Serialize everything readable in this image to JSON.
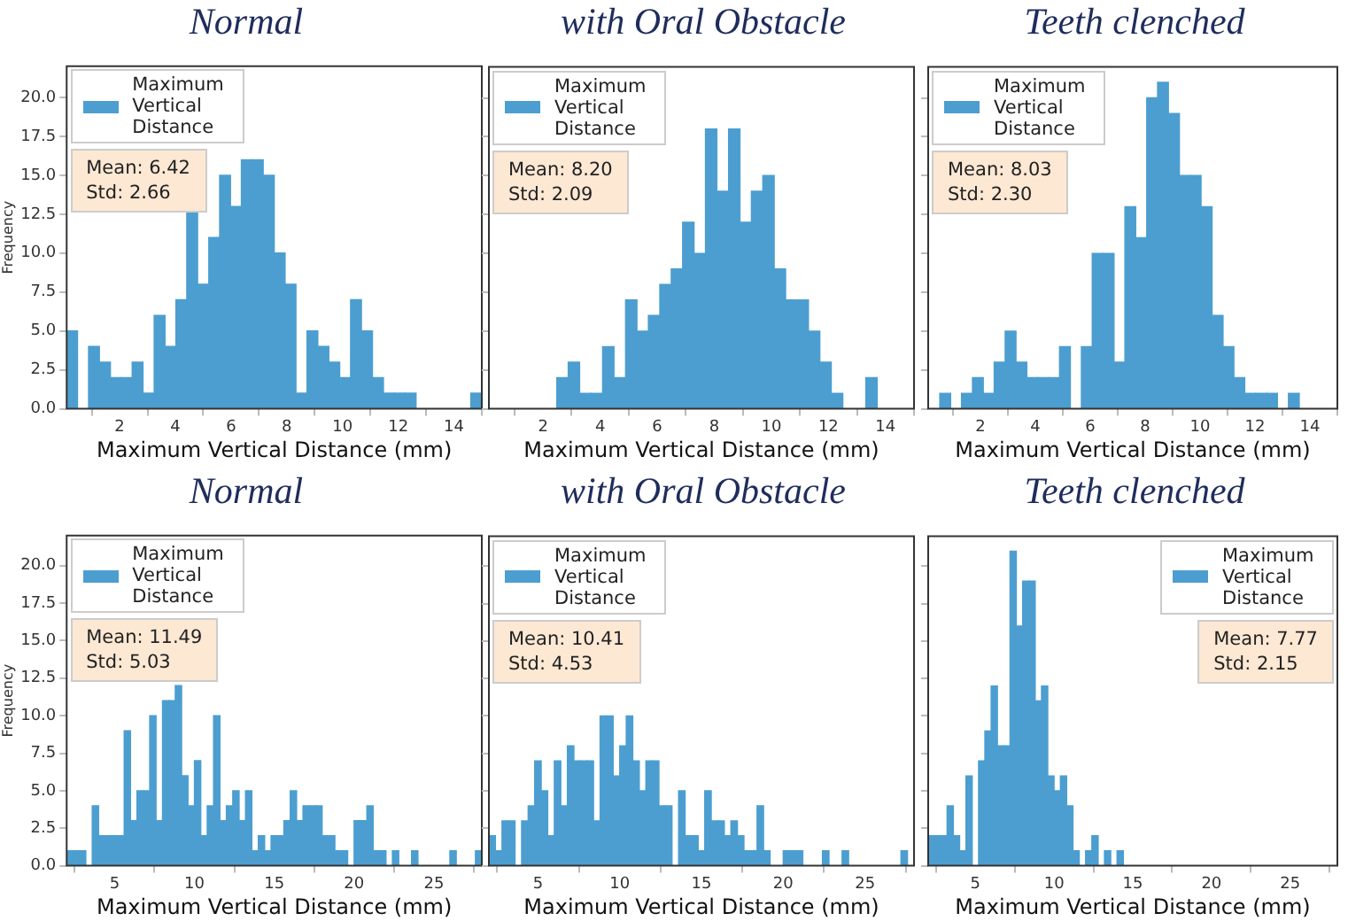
{
  "chart_data": [
    {
      "type": "histogram",
      "title": "Normal",
      "xlabel": "Maximum Vertical Distance (mm)",
      "ylabel": "Frequency",
      "legend": "top left",
      "annotations": [
        "Mean: 6.42",
        "Std: 2.66"
      ],
      "bins": [
        0.1,
        0.49,
        0.88,
        1.28,
        1.67,
        2.06,
        2.45,
        2.84,
        3.24,
        3.63,
        4.02,
        4.41,
        4.8,
        5.2,
        5.59,
        5.98,
        6.37,
        6.76,
        7.16,
        7.55,
        7.94,
        8.33,
        8.72,
        9.12,
        9.51,
        9.9,
        10.29,
        10.68,
        11.08,
        11.47,
        11.86,
        12.25,
        12.64,
        13.04,
        13.43,
        13.82,
        14.21,
        14.6,
        15.0
      ],
      "series": [
        {
          "name": "Maximum Vertical Distance",
          "color": "#4c9ed0",
          "values": [
            5,
            0,
            4,
            3,
            2,
            2,
            3,
            1,
            6,
            4,
            7,
            13,
            8,
            11,
            15,
            13,
            16,
            16,
            15,
            10,
            8,
            1,
            5,
            4,
            3,
            2,
            7,
            5,
            2,
            1,
            1,
            1,
            0,
            0,
            0,
            0,
            0,
            1
          ]
        }
      ],
      "xlim": [
        0.1,
        15
      ],
      "xticks": [
        2,
        4,
        6,
        8,
        10,
        12,
        14
      ],
      "ylim": [
        0,
        22
      ],
      "yticks": [
        {
          "value": 0,
          "label": "0.0"
        },
        {
          "value": 2.5,
          "label": "2.5"
        },
        {
          "value": 5,
          "label": "5.0"
        },
        {
          "value": 7.5,
          "label": "7.5"
        },
        {
          "value": 10,
          "label": "10.0"
        },
        {
          "value": 12.5,
          "label": "12.5"
        },
        {
          "value": 15,
          "label": "15.0"
        },
        {
          "value": 17.5,
          "label": "17.5"
        },
        {
          "value": 20,
          "label": "20.0"
        }
      ]
    },
    {
      "type": "histogram",
      "title": "with Oral Obstacle",
      "xlabel": "Maximum Vertical Distance (mm)",
      "legend": "top left",
      "annotations": [
        "Mean: 8.20",
        "Std: 2.09"
      ],
      "tick_labels": "x",
      "bins": [
        2.48,
        2.88,
        3.28,
        3.68,
        4.08,
        4.49,
        4.89,
        5.29,
        5.69,
        6.09,
        6.49,
        6.89,
        7.29,
        7.69,
        8.09,
        8.5,
        8.9,
        9.3,
        9.7,
        10.1,
        10.5,
        10.9,
        11.3,
        11.7,
        12.1,
        12.51,
        12.91,
        13.31,
        13.71
      ],
      "series": [
        {
          "name": "Maximum Vertical Distance",
          "color": "#4c9ed0",
          "values": [
            2,
            3,
            1,
            1,
            4,
            2,
            7,
            5,
            6,
            8,
            9,
            12,
            10,
            18,
            14,
            18,
            12,
            14,
            15,
            9,
            7,
            7,
            5,
            3,
            1,
            0,
            0,
            2
          ]
        }
      ],
      "xlim": [
        0.1,
        15
      ],
      "xticks": [
        2,
        4,
        6,
        8,
        10,
        12,
        14
      ],
      "ylim": [
        0,
        22
      ],
      "yticks": [
        0,
        2.5,
        5,
        7.5,
        10,
        12.5,
        15,
        17.5,
        20
      ]
    },
    {
      "type": "histogram",
      "title": "Teeth clenched",
      "xlabel": "Maximum Vertical Distance (mm)",
      "legend": "top left",
      "annotations": [
        "Mean: 8.03",
        "Std: 2.30"
      ],
      "tick_labels": "x",
      "bins": [
        0.52,
        0.92,
        1.31,
        1.71,
        2.11,
        2.5,
        2.9,
        3.3,
        3.69,
        4.09,
        4.49,
        4.88,
        5.28,
        5.68,
        6.07,
        6.47,
        6.87,
        7.26,
        7.66,
        8.06,
        8.45,
        8.85,
        9.25,
        9.64,
        10.04,
        10.44,
        10.84,
        11.23,
        11.63,
        12.03,
        12.42,
        12.82,
        13.22,
        13.61
      ],
      "series": [
        {
          "name": "Maximum Vertical Distance",
          "color": "#4c9ed0",
          "values": [
            1,
            0,
            1,
            2,
            1,
            3,
            5,
            3,
            2,
            2,
            2,
            4,
            0,
            4,
            10,
            10,
            3,
            13,
            11,
            20,
            21,
            19,
            15,
            15,
            13,
            6,
            4,
            2,
            1,
            1,
            1,
            0,
            1
          ]
        }
      ],
      "xlim": [
        0.1,
        15
      ],
      "xticks": [
        2,
        4,
        6,
        8,
        10,
        12,
        14
      ],
      "ylim": [
        0,
        22
      ],
      "yticks": [
        0,
        2.5,
        5,
        7.5,
        10,
        12.5,
        15,
        17.5,
        20
      ]
    },
    {
      "type": "histogram",
      "title": "Normal",
      "xlabel": "Maximum Vertical Distance (mm)",
      "ylabel": "Frequency",
      "legend": "top left",
      "annotations": [
        "Mean: 11.49",
        "Std: 5.03"
      ],
      "bins": [
        2,
        2.4,
        2.8,
        3.2,
        3.6,
        4,
        4.4,
        4.8,
        5.2,
        5.6,
        6,
        6.4,
        6.8,
        7.2,
        7.6,
        8,
        8.4,
        8.8,
        9.2,
        9.6,
        10,
        10.4,
        10.8,
        11.2,
        11.6,
        12,
        12.4,
        12.8,
        13.2,
        13.6,
        14,
        14.4,
        14.8,
        15.2,
        15.6,
        16,
        16.4,
        16.8,
        17.2,
        17.6,
        18,
        18.4,
        18.8,
        19.2,
        19.6,
        20,
        20.4,
        20.8,
        21.2,
        21.6,
        22,
        22.4,
        22.8,
        23.2,
        23.6,
        24,
        24.4,
        24.8,
        25.2,
        25.6,
        26,
        26.4,
        26.8,
        27.2,
        27.6,
        28
      ],
      "series": [
        {
          "name": "Maximum Vertical Distance",
          "color": "#4c9ed0",
          "values": [
            1,
            1,
            1,
            0,
            4,
            2,
            2,
            2,
            2,
            9,
            3,
            5,
            5,
            10,
            3,
            11,
            11,
            12,
            6,
            4,
            7,
            2,
            4,
            10,
            3,
            4,
            5,
            3,
            5,
            1,
            2,
            1,
            2,
            2,
            3,
            5,
            3,
            4,
            4,
            4,
            2,
            2,
            1,
            1,
            0,
            3,
            3,
            4,
            1,
            1,
            0,
            1,
            0,
            0,
            1,
            0,
            0,
            0,
            0,
            0,
            1,
            0,
            0,
            0,
            1
          ]
        }
      ],
      "xlim": [
        2,
        28
      ],
      "xticks": [
        5,
        10,
        15,
        20,
        25
      ],
      "ylim": [
        0,
        22
      ],
      "yticks": [
        {
          "value": 0,
          "label": "0.0"
        },
        {
          "value": 2.5,
          "label": "2.5"
        },
        {
          "value": 5,
          "label": "5.0"
        },
        {
          "value": 7.5,
          "label": "7.5"
        },
        {
          "value": 10,
          "label": "10.0"
        },
        {
          "value": 12.5,
          "label": "12.5"
        },
        {
          "value": 15,
          "label": "15.0"
        },
        {
          "value": 17.5,
          "label": "17.5"
        },
        {
          "value": 20,
          "label": "20.0"
        }
      ]
    },
    {
      "type": "histogram",
      "title": "with Oral Obstacle",
      "xlabel": "Maximum Vertical Distance (mm)",
      "legend": "top left",
      "annotations": [
        "Mean: 10.41",
        "Std: 4.53"
      ],
      "tick_labels": "x",
      "bins": [
        2,
        2.4,
        2.8,
        3.2,
        3.6,
        4,
        4.4,
        4.8,
        5.2,
        5.6,
        6,
        6.4,
        6.8,
        7.2,
        7.6,
        8,
        8.4,
        8.8,
        9.2,
        9.6,
        10,
        10.4,
        10.8,
        11.2,
        11.6,
        12,
        12.4,
        12.8,
        13.2,
        13.6,
        14,
        14.4,
        14.8,
        15.2,
        15.6,
        16,
        16.4,
        16.8,
        17.2,
        17.6,
        18,
        18.4,
        18.8,
        19.2,
        19.6,
        20,
        20.4,
        20.8,
        21.2,
        21.6,
        22,
        22.4,
        22.8,
        23.2,
        23.6,
        24,
        24.4,
        24.8,
        25.2,
        25.6,
        26,
        26.4,
        26.8,
        27.2,
        27.6,
        28
      ],
      "series": [
        {
          "name": "Maximum Vertical Distance",
          "color": "#4c9ed0",
          "values": [
            2,
            1,
            3,
            3,
            0,
            3,
            4,
            7,
            5,
            2,
            7,
            4,
            8,
            7,
            7,
            7,
            3,
            10,
            10,
            6,
            8,
            10,
            7,
            5,
            7,
            7,
            4,
            4,
            0,
            5,
            2,
            2,
            1,
            5,
            3,
            3,
            2,
            3,
            2,
            1,
            1,
            4,
            1,
            0,
            0,
            1,
            1,
            1,
            0,
            0,
            0,
            1,
            0,
            0,
            1,
            0,
            0,
            0,
            0,
            0,
            0,
            0,
            0,
            1,
            0
          ]
        }
      ],
      "xlim": [
        2,
        28
      ],
      "xticks": [
        5,
        10,
        15,
        20,
        25
      ],
      "ylim": [
        0,
        22
      ],
      "yticks": [
        0,
        2.5,
        5,
        7.5,
        10,
        12.5,
        15,
        17.5,
        20
      ]
    },
    {
      "type": "histogram",
      "title": "Teeth clenched",
      "xlabel": "Maximum Vertical Distance (mm)",
      "legend": "top right",
      "annotations": [
        "Mean: 7.77",
        "Std: 2.15"
      ],
      "tick_labels": "x",
      "bins": [
        2,
        2.4,
        2.8,
        3.2,
        3.6,
        4,
        4.4,
        4.8,
        5.2,
        5.6,
        6,
        6.4,
        6.8,
        7.2,
        7.6,
        8,
        8.4,
        8.8,
        9.2,
        9.6,
        10,
        10.4,
        10.8,
        11.2,
        11.6,
        12,
        12.4,
        12.8,
        13.2,
        13.6,
        14,
        14.4,
        14.8,
        15.2,
        15.6,
        16,
        16.4,
        16.8,
        17.2,
        17.6,
        18,
        18.4,
        18.8,
        19.2,
        19.6,
        20,
        20.4,
        20.8,
        21.2,
        21.6,
        22,
        22.4,
        22.8,
        23.2,
        23.6,
        24,
        24.4,
        24.8,
        25.2,
        25.6,
        26,
        26.4,
        26.8,
        27.2,
        27.6,
        28
      ],
      "series": [
        {
          "name": "Maximum Vertical Distance",
          "color": "#4c9ed0",
          "values": [
            2,
            2,
            2,
            4,
            2,
            1,
            6,
            0,
            7,
            9,
            12,
            8,
            8,
            21,
            16,
            19,
            19,
            11,
            12,
            6,
            5,
            6,
            4,
            1,
            0,
            1,
            2,
            0,
            1,
            0,
            1,
            0,
            0,
            0,
            0,
            0,
            0,
            0,
            0,
            0,
            0,
            0,
            0,
            0,
            0,
            0,
            0,
            0,
            0,
            0,
            0,
            0,
            0,
            0,
            0,
            0,
            0,
            0,
            0,
            0,
            0,
            0,
            0,
            0,
            0
          ]
        }
      ],
      "xlim": [
        2,
        28
      ],
      "xticks": [
        5,
        10,
        15,
        20,
        25
      ],
      "ylim": [
        0,
        22
      ],
      "yticks": [
        0,
        2.5,
        5,
        7.5,
        10,
        12.5,
        15,
        17.5,
        20
      ]
    }
  ]
}
